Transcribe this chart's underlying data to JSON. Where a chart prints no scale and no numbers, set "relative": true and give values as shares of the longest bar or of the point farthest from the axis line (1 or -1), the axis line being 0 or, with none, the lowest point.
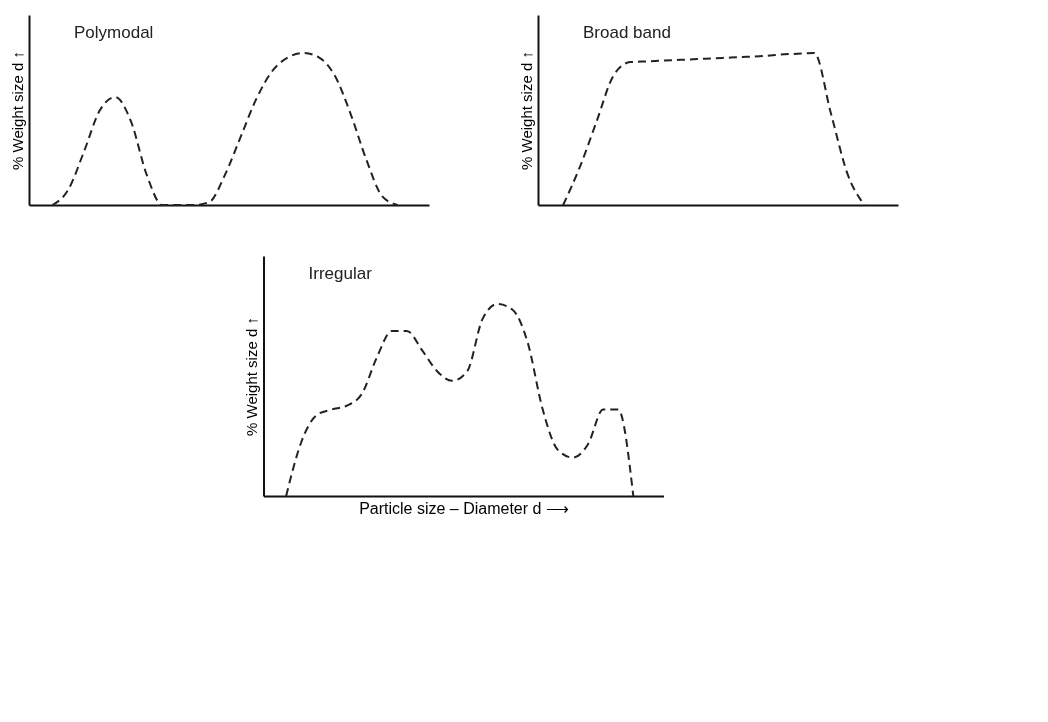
{
  "chart_data": [
    {
      "type": "line",
      "title": "Polymodal",
      "ylabel": "% Weight size d ↑",
      "relative": true,
      "line_style": "dashed",
      "tick_labels": false,
      "grid": false,
      "categories": [
        null,
        null,
        null,
        null,
        null,
        null,
        null,
        null,
        null,
        null,
        null,
        null,
        null,
        null,
        null,
        null,
        null,
        null,
        null,
        null,
        null,
        null,
        null
      ],
      "series": [
        {
          "color": "#222222",
          "values": [
            0,
            0.1,
            0.35,
            0.62,
            0.71,
            0.55,
            0.2,
            0,
            0,
            0,
            0.02,
            0.2,
            0.45,
            0.7,
            0.88,
            0.97,
            1.0,
            0.97,
            0.85,
            0.6,
            0.3,
            0.06,
            0
          ]
        }
      ]
    },
    {
      "type": "line",
      "title": "Broad band",
      "ylabel": "% Weight size d ↑",
      "relative": true,
      "line_style": "dashed",
      "tick_labels": false,
      "grid": false,
      "categories": [
        null,
        null,
        null,
        null,
        null,
        null,
        null,
        null,
        null,
        null,
        null,
        null,
        null,
        null,
        null,
        null,
        null,
        null,
        null
      ],
      "series": [
        {
          "color": "#222222",
          "values": [
            0,
            0.25,
            0.55,
            0.85,
            0.94,
            0.945,
            0.95,
            0.955,
            0.96,
            0.965,
            0.97,
            0.975,
            0.98,
            0.99,
            0.995,
            1.0,
            0.6,
            0.2,
            0
          ]
        }
      ]
    },
    {
      "type": "line",
      "title": "Irregular",
      "ylabel": "% Weight size d ↑",
      "xlabel": "Particle size – Diameter d ⟶",
      "relative": true,
      "line_style": "dashed",
      "tick_labels": false,
      "grid": false,
      "categories": [
        null,
        null,
        null,
        null,
        null,
        null,
        null,
        null,
        null,
        null,
        null,
        null,
        null,
        null,
        null,
        null,
        null,
        null,
        null,
        null,
        null,
        null,
        null,
        null
      ],
      "series": [
        {
          "color": "#222222",
          "values": [
            0,
            0.28,
            0.42,
            0.45,
            0.47,
            0.53,
            0.72,
            0.86,
            0.86,
            0.76,
            0.65,
            0.6,
            0.65,
            0.92,
            1.0,
            0.97,
            0.8,
            0.45,
            0.24,
            0.2,
            0.27,
            0.45,
            0.45,
            0
          ]
        }
      ]
    }
  ]
}
